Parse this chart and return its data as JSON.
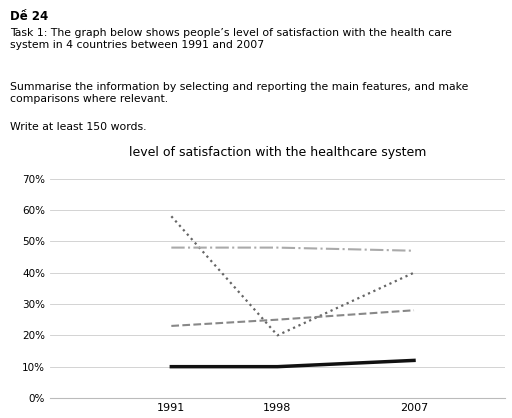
{
  "title": "level of satisfaction with the healthcare system",
  "years": [
    1991,
    1998,
    2007
  ],
  "series": {
    "Canada": [
      58,
      20,
      40
    ],
    "UK": [
      23,
      25,
      28
    ],
    "Netherlands": [
      48,
      48,
      47
    ],
    "US": [
      10,
      10,
      12
    ]
  },
  "styles": {
    "Canada": {
      "color": "#666666",
      "linestyle": "dotted",
      "linewidth": 1.6
    },
    "UK": {
      "color": "#888888",
      "linestyle": "dashed",
      "linewidth": 1.5
    },
    "Netherlands": {
      "color": "#aaaaaa",
      "linestyle": "dashdot",
      "linewidth": 1.5
    },
    "US": {
      "color": "#111111",
      "linestyle": "solid",
      "linewidth": 2.5
    }
  },
  "ylim": [
    0,
    75
  ],
  "yticks": [
    0,
    10,
    20,
    30,
    40,
    50,
    60,
    70
  ],
  "ytick_labels": [
    "0%",
    "10%",
    "20%",
    "30%",
    "40%",
    "50%",
    "60%",
    "70%"
  ],
  "background_color": "#ffffff",
  "header_line1": "Dề 24",
  "header_line2": "Task 1: The graph below shows people’s level of satisfaction with the health care\nsystem in 4 countries between 1991 and 2007",
  "header_line3": "Summarise the information by selecting and reporting the main features, and make\ncomparisons where relevant.",
  "header_line4": "Write at least 150 words."
}
